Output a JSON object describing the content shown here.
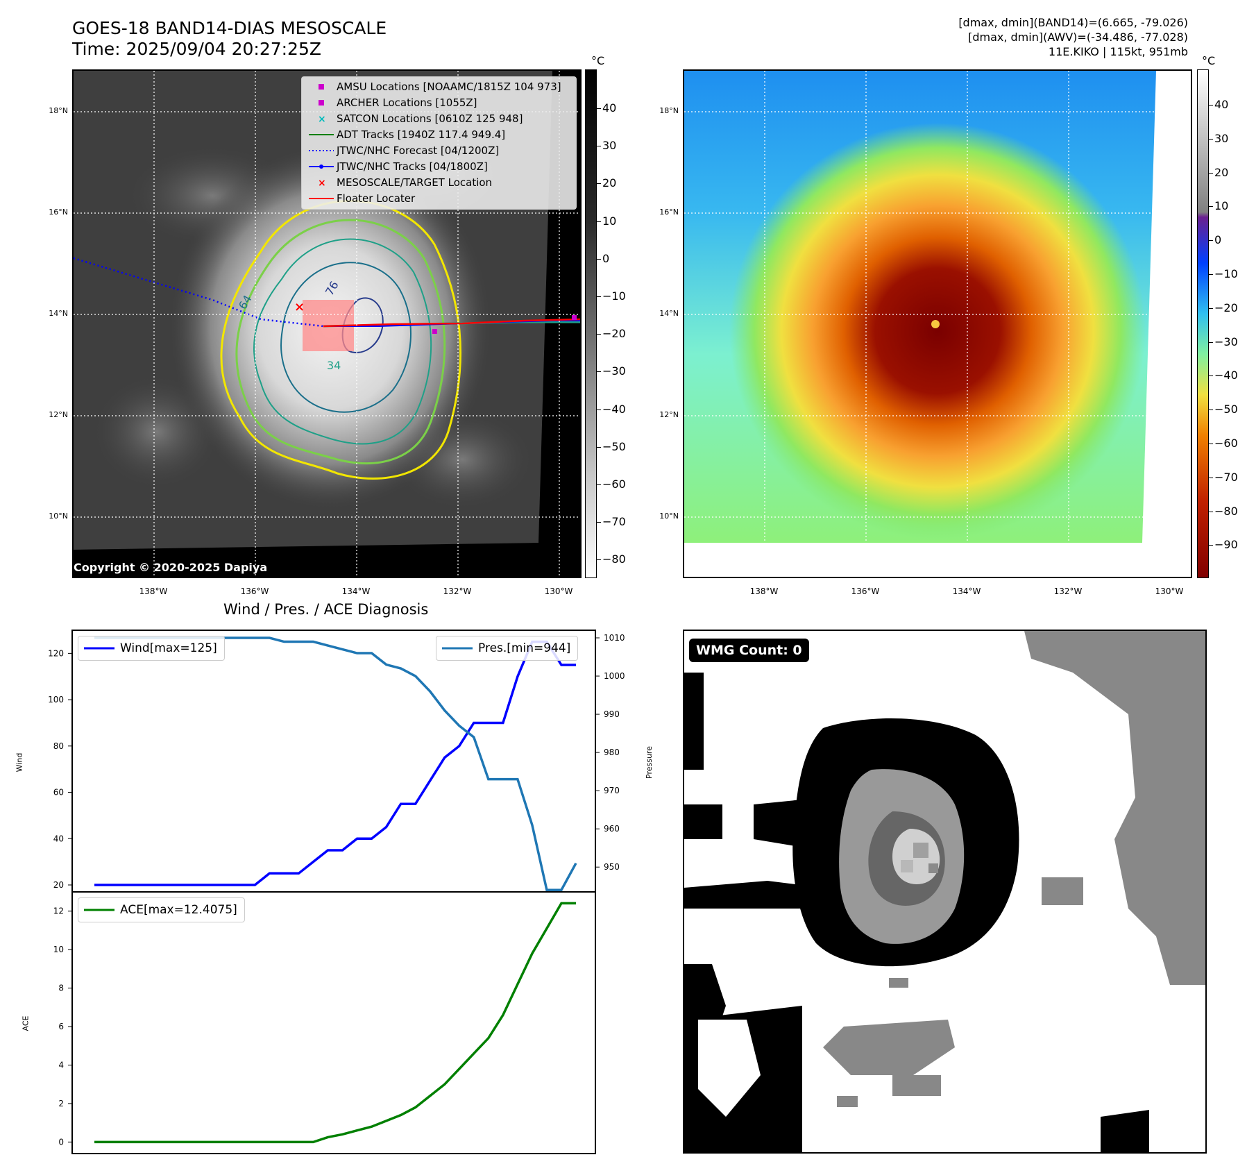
{
  "header": {
    "title_line1": "GOES-18 BAND14-DIAS MESOSCALE",
    "title_line2": "Time: 2025/09/04 20:27:25Z",
    "info_line1": "[dmax, dmin](BAND14)=(6.665, -79.026)",
    "info_line2": "[dmax, dmin](AWV)=(-34.486, -77.028)",
    "info_line3": "11E.KIKO | 115kt, 951mb"
  },
  "map": {
    "lat_labels": [
      "18°N",
      "16°N",
      "14°N",
      "12°N",
      "10°N"
    ],
    "lon_labels": [
      "138°W",
      "136°W",
      "134°W",
      "132°W",
      "130°W"
    ],
    "contour_labels": [
      "64",
      "76",
      "34"
    ],
    "copyright": "Copyright © 2020-2025 Dapiya",
    "legend": [
      {
        "label": "AMSU Locations [NOAAMC/1815Z 104 973]",
        "color": "#cc00cc",
        "marker": "square"
      },
      {
        "label": "ARCHER Locations [1055Z]",
        "color": "#cc00cc",
        "marker": "square"
      },
      {
        "label": "SATCON Locations [0610Z 125 948]",
        "color": "#00bbbb",
        "marker": "x"
      },
      {
        "label": "ADT Tracks [1940Z 117.4 949.4]",
        "color": "#008000",
        "marker": "line"
      },
      {
        "label": "JTWC/NHC Forecast [04/1200Z]",
        "color": "#0000ff",
        "marker": "dotted"
      },
      {
        "label": "JTWC/NHC Tracks [04/1800Z]",
        "color": "#0000ff",
        "marker": "line-dot"
      },
      {
        "label": "MESOSCALE/TARGET Location",
        "color": "#ff0000",
        "marker": "x-red"
      },
      {
        "label": "Floater Locater",
        "color": "#ff0000",
        "marker": "line"
      }
    ]
  },
  "colorbar_gray": {
    "unit": "°C",
    "ticks": [
      "40",
      "30",
      "20",
      "10",
      "0",
      "−10",
      "−20",
      "−30",
      "−40",
      "−50",
      "−60",
      "−70",
      "−80"
    ]
  },
  "colorbar_color": {
    "unit": "°C",
    "ticks": [
      "40",
      "30",
      "20",
      "10",
      "0",
      "−10",
      "−20",
      "−30",
      "−40",
      "−50",
      "−60",
      "−70",
      "−80",
      "−90"
    ]
  },
  "wmg": {
    "count_label": "WMG Count: 0"
  },
  "chart_data": [
    {
      "type": "line",
      "title": "Wind / Pres. / ACE Diagnosis",
      "ylabel": "Wind",
      "y2label": "Pressure",
      "ylim": [
        17,
        130
      ],
      "y2lim": [
        943.5,
        1012
      ],
      "yticks": [
        20,
        40,
        60,
        80,
        100,
        120
      ],
      "y2ticks": [
        950,
        960,
        970,
        980,
        990,
        1000,
        1010
      ],
      "series": [
        {
          "name": "Wind[max=125]",
          "color": "#0000ff",
          "x": [
            0,
            1,
            2,
            3,
            4,
            5,
            6,
            7,
            8,
            9,
            10,
            11,
            12,
            13,
            14,
            15,
            16,
            17,
            18,
            19,
            20,
            21,
            22,
            23,
            24,
            25,
            26,
            27,
            28,
            29,
            30,
            31,
            32,
            33
          ],
          "values": [
            20,
            20,
            20,
            20,
            20,
            20,
            20,
            20,
            20,
            20,
            20,
            20,
            25,
            25,
            25,
            30,
            35,
            35,
            40,
            40,
            45,
            55,
            55,
            65,
            75,
            80,
            90,
            90,
            90,
            110,
            125,
            125,
            115,
            115
          ]
        },
        {
          "name": "Pres.[min=944]",
          "color": "#1f77b4",
          "x": [
            0,
            1,
            2,
            3,
            4,
            5,
            6,
            7,
            8,
            9,
            10,
            11,
            12,
            13,
            14,
            15,
            16,
            17,
            18,
            19,
            20,
            21,
            22,
            23,
            24,
            25,
            26,
            27,
            28,
            29,
            30,
            31,
            32,
            33
          ],
          "values": [
            1010,
            1010,
            1010,
            1010,
            1010,
            1010,
            1010,
            1010,
            1010,
            1010,
            1010,
            1010,
            1010,
            1009,
            1009,
            1009,
            1008,
            1007,
            1006,
            1006,
            1003,
            1002,
            1000,
            996,
            991,
            987,
            984,
            973,
            973,
            973,
            961,
            944,
            944,
            951
          ]
        }
      ]
    },
    {
      "type": "line",
      "ylabel": "ACE",
      "ylim": [
        -0.6,
        13
      ],
      "yticks": [
        0,
        2,
        4,
        6,
        8,
        10,
        12
      ],
      "series": [
        {
          "name": "ACE[max=12.4075]",
          "color": "#008000",
          "x": [
            0,
            1,
            2,
            3,
            4,
            5,
            6,
            7,
            8,
            9,
            10,
            11,
            12,
            13,
            14,
            15,
            16,
            17,
            18,
            19,
            20,
            21,
            22,
            23,
            24,
            25,
            26,
            27,
            28,
            29,
            30,
            31,
            32,
            33
          ],
          "values": [
            0,
            0,
            0,
            0,
            0,
            0,
            0,
            0,
            0,
            0,
            0,
            0,
            0,
            0,
            0,
            0,
            0.25,
            0.4,
            0.6,
            0.8,
            1.1,
            1.4,
            1.8,
            2.4,
            3.0,
            3.8,
            4.6,
            5.4,
            6.6,
            8.2,
            9.8,
            11.1,
            12.4075,
            12.4075
          ]
        }
      ]
    }
  ]
}
